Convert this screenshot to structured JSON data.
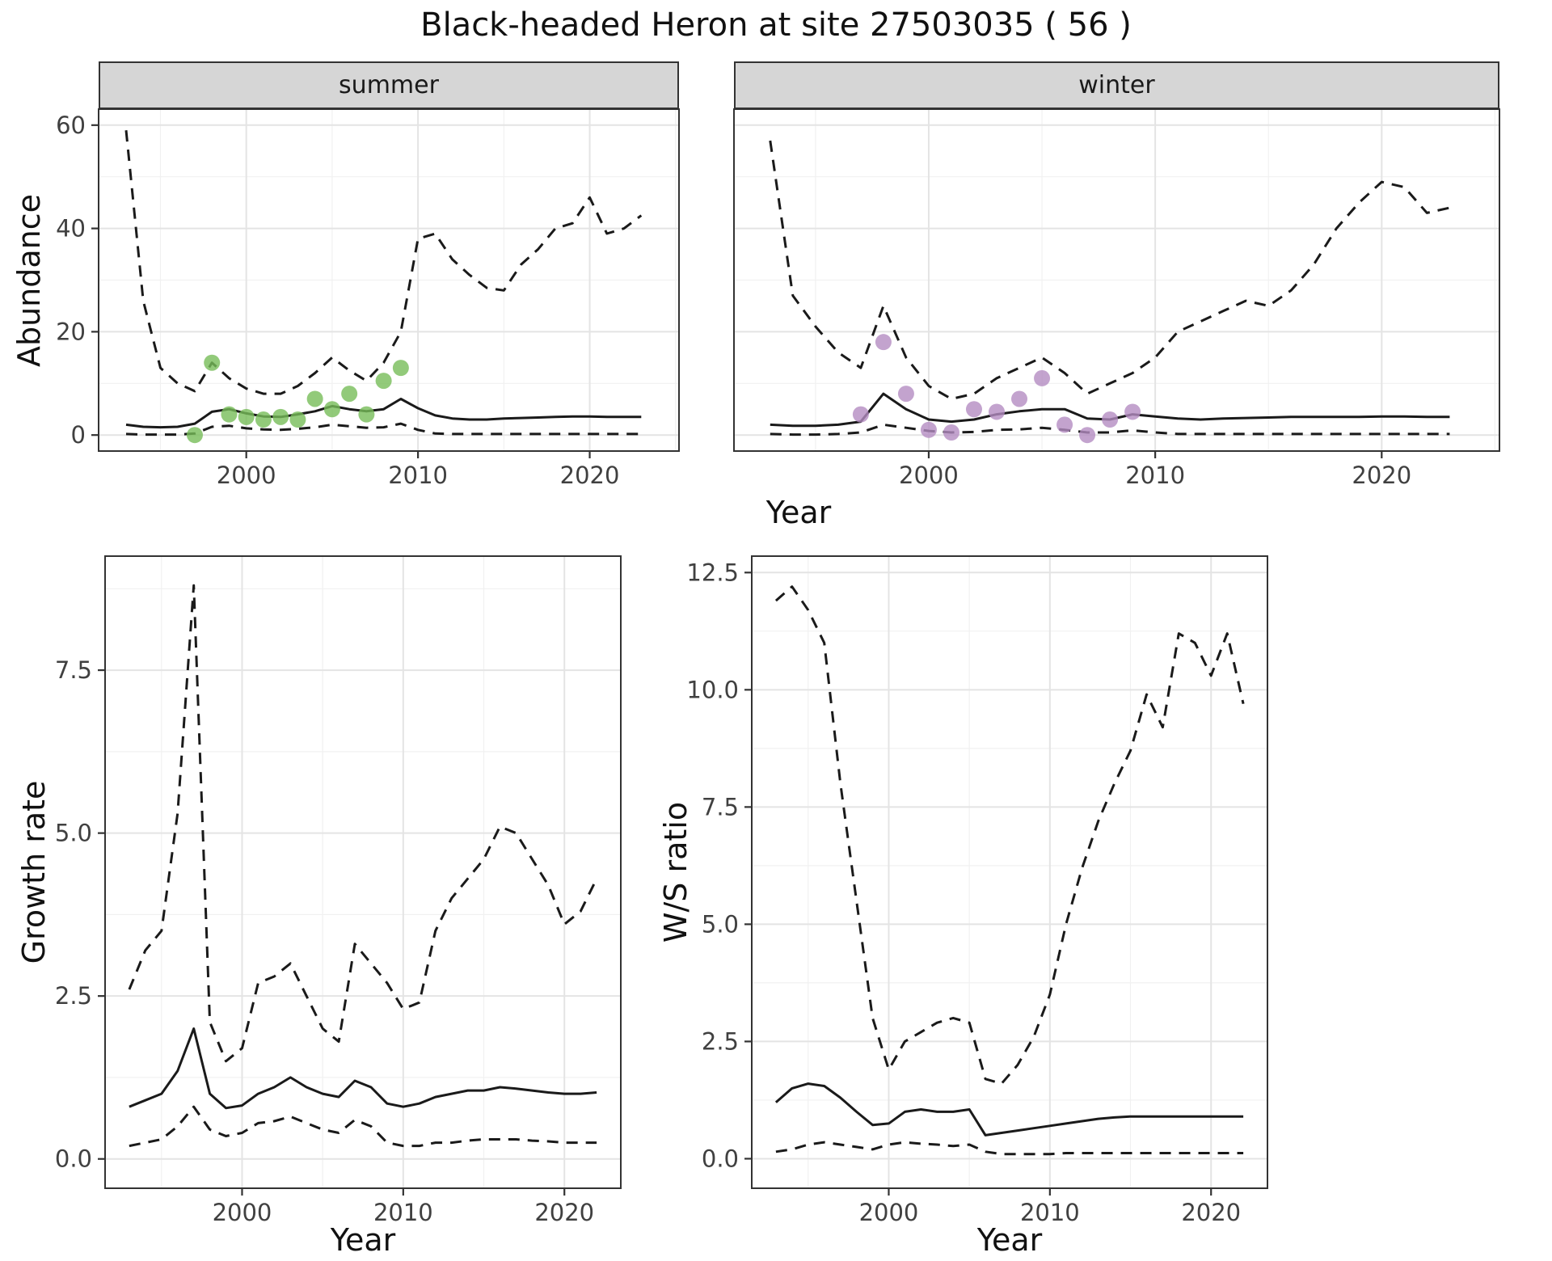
{
  "title": "Black-headed Heron at site 27503035 ( 56 )",
  "top_row": {
    "ylabel": "Abundance",
    "xlabel": "Year",
    "facets": [
      "summer",
      "winter"
    ]
  },
  "bottom_left": {
    "ylabel": "Growth rate",
    "xlabel": "Year"
  },
  "bottom_right": {
    "ylabel": "W/S ratio",
    "xlabel": "Year"
  },
  "colors": {
    "summer_points": "#77bd59",
    "winter_points": "#b48cc2",
    "line": "#1a1a1a",
    "strip_bg": "#d6d6d6",
    "grid_major": "#e4e4e4",
    "grid_minor": "#f1f1f1"
  },
  "chart_data": [
    {
      "id": "summer-abundance",
      "type": "line",
      "facet": "summer",
      "xlabel": "Year",
      "ylabel": "Abundance",
      "xlim": [
        1991.4,
        2025.2
      ],
      "ylim": [
        -3.1,
        63.1
      ],
      "xticks": [
        2000,
        2010,
        2020
      ],
      "xtick_labels": [
        "2000",
        "2010",
        "2020"
      ],
      "yticks": [
        0,
        20,
        40,
        60
      ],
      "ytick_labels": [
        "0",
        "20",
        "40",
        "60"
      ],
      "x": [
        1993,
        1994,
        1995,
        1996,
        1997,
        1998,
        1999,
        2000,
        2001,
        2002,
        2003,
        2004,
        2005,
        2006,
        2007,
        2008,
        2009,
        2010,
        2011,
        2012,
        2013,
        2014,
        2015,
        2016,
        2017,
        2018,
        2019,
        2020,
        2021,
        2022,
        2023
      ],
      "series": [
        {
          "name": "upper_95ci",
          "style": "dashed",
          "values": [
            59,
            26,
            13,
            10,
            8.5,
            14,
            11,
            9,
            8,
            8,
            9.5,
            12,
            15,
            12.5,
            10.5,
            14,
            20,
            38,
            39,
            34,
            31,
            28.5,
            28,
            33,
            36,
            40,
            41,
            46,
            39,
            40,
            42.5
          ]
        },
        {
          "name": "mean",
          "style": "solid",
          "values": [
            2,
            1.6,
            1.5,
            1.6,
            2.2,
            4.5,
            5,
            4.2,
            3.6,
            3.5,
            4,
            4.6,
            5.6,
            5,
            4.6,
            5,
            7,
            5.2,
            3.8,
            3.2,
            3,
            3,
            3.2,
            3.3,
            3.4,
            3.5,
            3.6,
            3.6,
            3.5,
            3.5,
            3.5
          ]
        },
        {
          "name": "lower_95ci",
          "style": "dashed",
          "values": [
            0.2,
            0.1,
            0.1,
            0.1,
            0.3,
            1.6,
            1.8,
            1.3,
            1.1,
            1,
            1.2,
            1.5,
            2,
            1.7,
            1.4,
            1.5,
            2.2,
            1,
            0.3,
            0.2,
            0.2,
            0.2,
            0.2,
            0.2,
            0.2,
            0.2,
            0.2,
            0.2,
            0.2,
            0.2,
            0.2
          ]
        },
        {
          "name": "observed_counts",
          "style": "points",
          "color": "#77bd59",
          "x": [
            1997,
            1998,
            1999,
            2000,
            2001,
            2002,
            2003,
            2004,
            2005,
            2006,
            2007,
            2008,
            2009
          ],
          "values": [
            0,
            14,
            4,
            3.5,
            3,
            3.5,
            3,
            7,
            5,
            8,
            4,
            10.5,
            13
          ]
        }
      ]
    },
    {
      "id": "winter-abundance",
      "type": "line",
      "facet": "winter",
      "xlabel": "Year",
      "ylabel": "Abundance",
      "xlim": [
        1991.4,
        2025.2
      ],
      "ylim": [
        -3.1,
        63.1
      ],
      "xticks": [
        2000,
        2010,
        2020
      ],
      "xtick_labels": [
        "2000",
        "2010",
        "2020"
      ],
      "yticks": [
        0,
        20,
        40,
        60
      ],
      "ytick_labels": [
        "0",
        "20",
        "40",
        "60"
      ],
      "x": [
        1993,
        1994,
        1995,
        1996,
        1997,
        1998,
        1999,
        2000,
        2001,
        2002,
        2003,
        2004,
        2005,
        2006,
        2007,
        2008,
        2009,
        2010,
        2011,
        2012,
        2013,
        2014,
        2015,
        2016,
        2017,
        2018,
        2019,
        2020,
        2021,
        2022,
        2023
      ],
      "series": [
        {
          "name": "upper_95ci",
          "style": "dashed",
          "values": [
            57,
            27,
            21,
            16,
            13,
            25,
            15,
            9.5,
            7,
            8,
            11,
            13,
            15,
            12,
            8,
            10,
            12,
            15,
            20,
            22,
            24,
            26,
            25,
            28,
            33,
            40,
            45,
            49,
            48,
            43,
            44
          ]
        },
        {
          "name": "mean",
          "style": "solid",
          "values": [
            2,
            1.8,
            1.8,
            2,
            2.6,
            8,
            5,
            3,
            2.6,
            3,
            4,
            4.6,
            5,
            5,
            3.2,
            3,
            4,
            3.6,
            3.2,
            3,
            3.2,
            3.3,
            3.4,
            3.5,
            3.5,
            3.5,
            3.5,
            3.6,
            3.6,
            3.5,
            3.5
          ]
        },
        {
          "name": "lower_95ci",
          "style": "dashed",
          "values": [
            0.2,
            0.1,
            0.1,
            0.2,
            0.5,
            2,
            1.4,
            0.8,
            0.5,
            0.6,
            1,
            1.1,
            1.4,
            1,
            0.5,
            0.5,
            0.9,
            0.5,
            0.2,
            0.2,
            0.2,
            0.2,
            0.2,
            0.2,
            0.2,
            0.2,
            0.2,
            0.2,
            0.2,
            0.2,
            0.2
          ]
        },
        {
          "name": "observed_counts",
          "style": "points",
          "color": "#b48cc2",
          "x": [
            1997,
            1998,
            1999,
            2000,
            2001,
            2002,
            2003,
            2004,
            2005,
            2006,
            2007,
            2008,
            2009
          ],
          "values": [
            4,
            18,
            8,
            1,
            0.5,
            5,
            4.5,
            7,
            11,
            2,
            0,
            3,
            4.5
          ]
        }
      ]
    },
    {
      "id": "growth-rate",
      "type": "line",
      "xlabel": "Year",
      "ylabel": "Growth rate",
      "xlim": [
        1991.5,
        2023.5
      ],
      "ylim": [
        -0.45,
        9.25
      ],
      "xticks": [
        2000,
        2010,
        2020
      ],
      "xtick_labels": [
        "2000",
        "2010",
        "2020"
      ],
      "yticks": [
        0,
        2.5,
        5,
        7.5
      ],
      "ytick_labels": [
        "0.0",
        "2.5",
        "5.0",
        "7.5"
      ],
      "x": [
        1993,
        1994,
        1995,
        1996,
        1997,
        1998,
        1999,
        2000,
        2001,
        2002,
        2003,
        2004,
        2005,
        2006,
        2007,
        2008,
        2009,
        2010,
        2011,
        2012,
        2013,
        2014,
        2015,
        2016,
        2017,
        2018,
        2019,
        2020,
        2021,
        2022
      ],
      "series": [
        {
          "name": "upper_95ci",
          "style": "dashed",
          "values": [
            2.6,
            3.2,
            3.5,
            5.3,
            8.8,
            2.1,
            1.5,
            1.7,
            2.7,
            2.8,
            3.0,
            2.5,
            2.0,
            1.8,
            3.3,
            3.0,
            2.7,
            2.3,
            2.4,
            3.5,
            4.0,
            4.3,
            4.6,
            5.1,
            5.0,
            4.6,
            4.2,
            3.6,
            3.8,
            4.3
          ]
        },
        {
          "name": "mean",
          "style": "solid",
          "values": [
            0.8,
            0.9,
            1.0,
            1.35,
            2.0,
            1.0,
            0.78,
            0.82,
            1.0,
            1.1,
            1.25,
            1.1,
            1.0,
            0.95,
            1.2,
            1.1,
            0.85,
            0.8,
            0.85,
            0.95,
            1.0,
            1.05,
            1.05,
            1.1,
            1.08,
            1.05,
            1.02,
            1.0,
            1.0,
            1.02
          ]
        },
        {
          "name": "lower_95ci",
          "style": "dashed",
          "values": [
            0.2,
            0.25,
            0.3,
            0.5,
            0.8,
            0.45,
            0.35,
            0.4,
            0.55,
            0.58,
            0.65,
            0.55,
            0.45,
            0.4,
            0.6,
            0.5,
            0.25,
            0.2,
            0.2,
            0.25,
            0.25,
            0.28,
            0.3,
            0.3,
            0.3,
            0.28,
            0.27,
            0.25,
            0.25,
            0.25
          ]
        }
      ]
    },
    {
      "id": "ws-ratio",
      "type": "line",
      "xlabel": "Year",
      "ylabel": "W/S ratio",
      "xlim": [
        1991.5,
        2023.5
      ],
      "ylim": [
        -0.63,
        12.85
      ],
      "xticks": [
        2000,
        2010,
        2020
      ],
      "xtick_labels": [
        "2000",
        "2010",
        "2020"
      ],
      "yticks": [
        0,
        2.5,
        5,
        7.5,
        10,
        12.5
      ],
      "ytick_labels": [
        "0.0",
        "2.5",
        "5.0",
        "7.5",
        "10.0",
        "12.5"
      ],
      "x": [
        1993,
        1994,
        1995,
        1996,
        1997,
        1998,
        1999,
        2000,
        2001,
        2002,
        2003,
        2004,
        2005,
        2006,
        2007,
        2008,
        2009,
        2010,
        2011,
        2012,
        2013,
        2014,
        2015,
        2016,
        2017,
        2018,
        2019,
        2020,
        2021,
        2022
      ],
      "series": [
        {
          "name": "upper_95ci",
          "style": "dashed",
          "values": [
            11.9,
            12.2,
            11.7,
            11.0,
            8.0,
            5.5,
            3.0,
            1.9,
            2.5,
            2.7,
            2.9,
            3.0,
            2.9,
            1.7,
            1.6,
            2.0,
            2.6,
            3.5,
            5.0,
            6.2,
            7.2,
            8.0,
            8.7,
            9.9,
            9.2,
            11.2,
            11.0,
            10.3,
            11.2,
            9.7
          ]
        },
        {
          "name": "mean",
          "style": "solid",
          "values": [
            1.2,
            1.5,
            1.6,
            1.55,
            1.3,
            1.0,
            0.72,
            0.75,
            1.0,
            1.05,
            1.0,
            1.0,
            1.05,
            0.5,
            0.55,
            0.6,
            0.65,
            0.7,
            0.75,
            0.8,
            0.85,
            0.88,
            0.9,
            0.9,
            0.9,
            0.9,
            0.9,
            0.9,
            0.9,
            0.9
          ]
        },
        {
          "name": "lower_95ci",
          "style": "dashed",
          "values": [
            0.15,
            0.2,
            0.3,
            0.35,
            0.3,
            0.25,
            0.2,
            0.3,
            0.35,
            0.32,
            0.3,
            0.27,
            0.3,
            0.15,
            0.1,
            0.1,
            0.1,
            0.1,
            0.12,
            0.12,
            0.12,
            0.12,
            0.12,
            0.12,
            0.12,
            0.12,
            0.12,
            0.12,
            0.12,
            0.12
          ]
        }
      ]
    }
  ]
}
